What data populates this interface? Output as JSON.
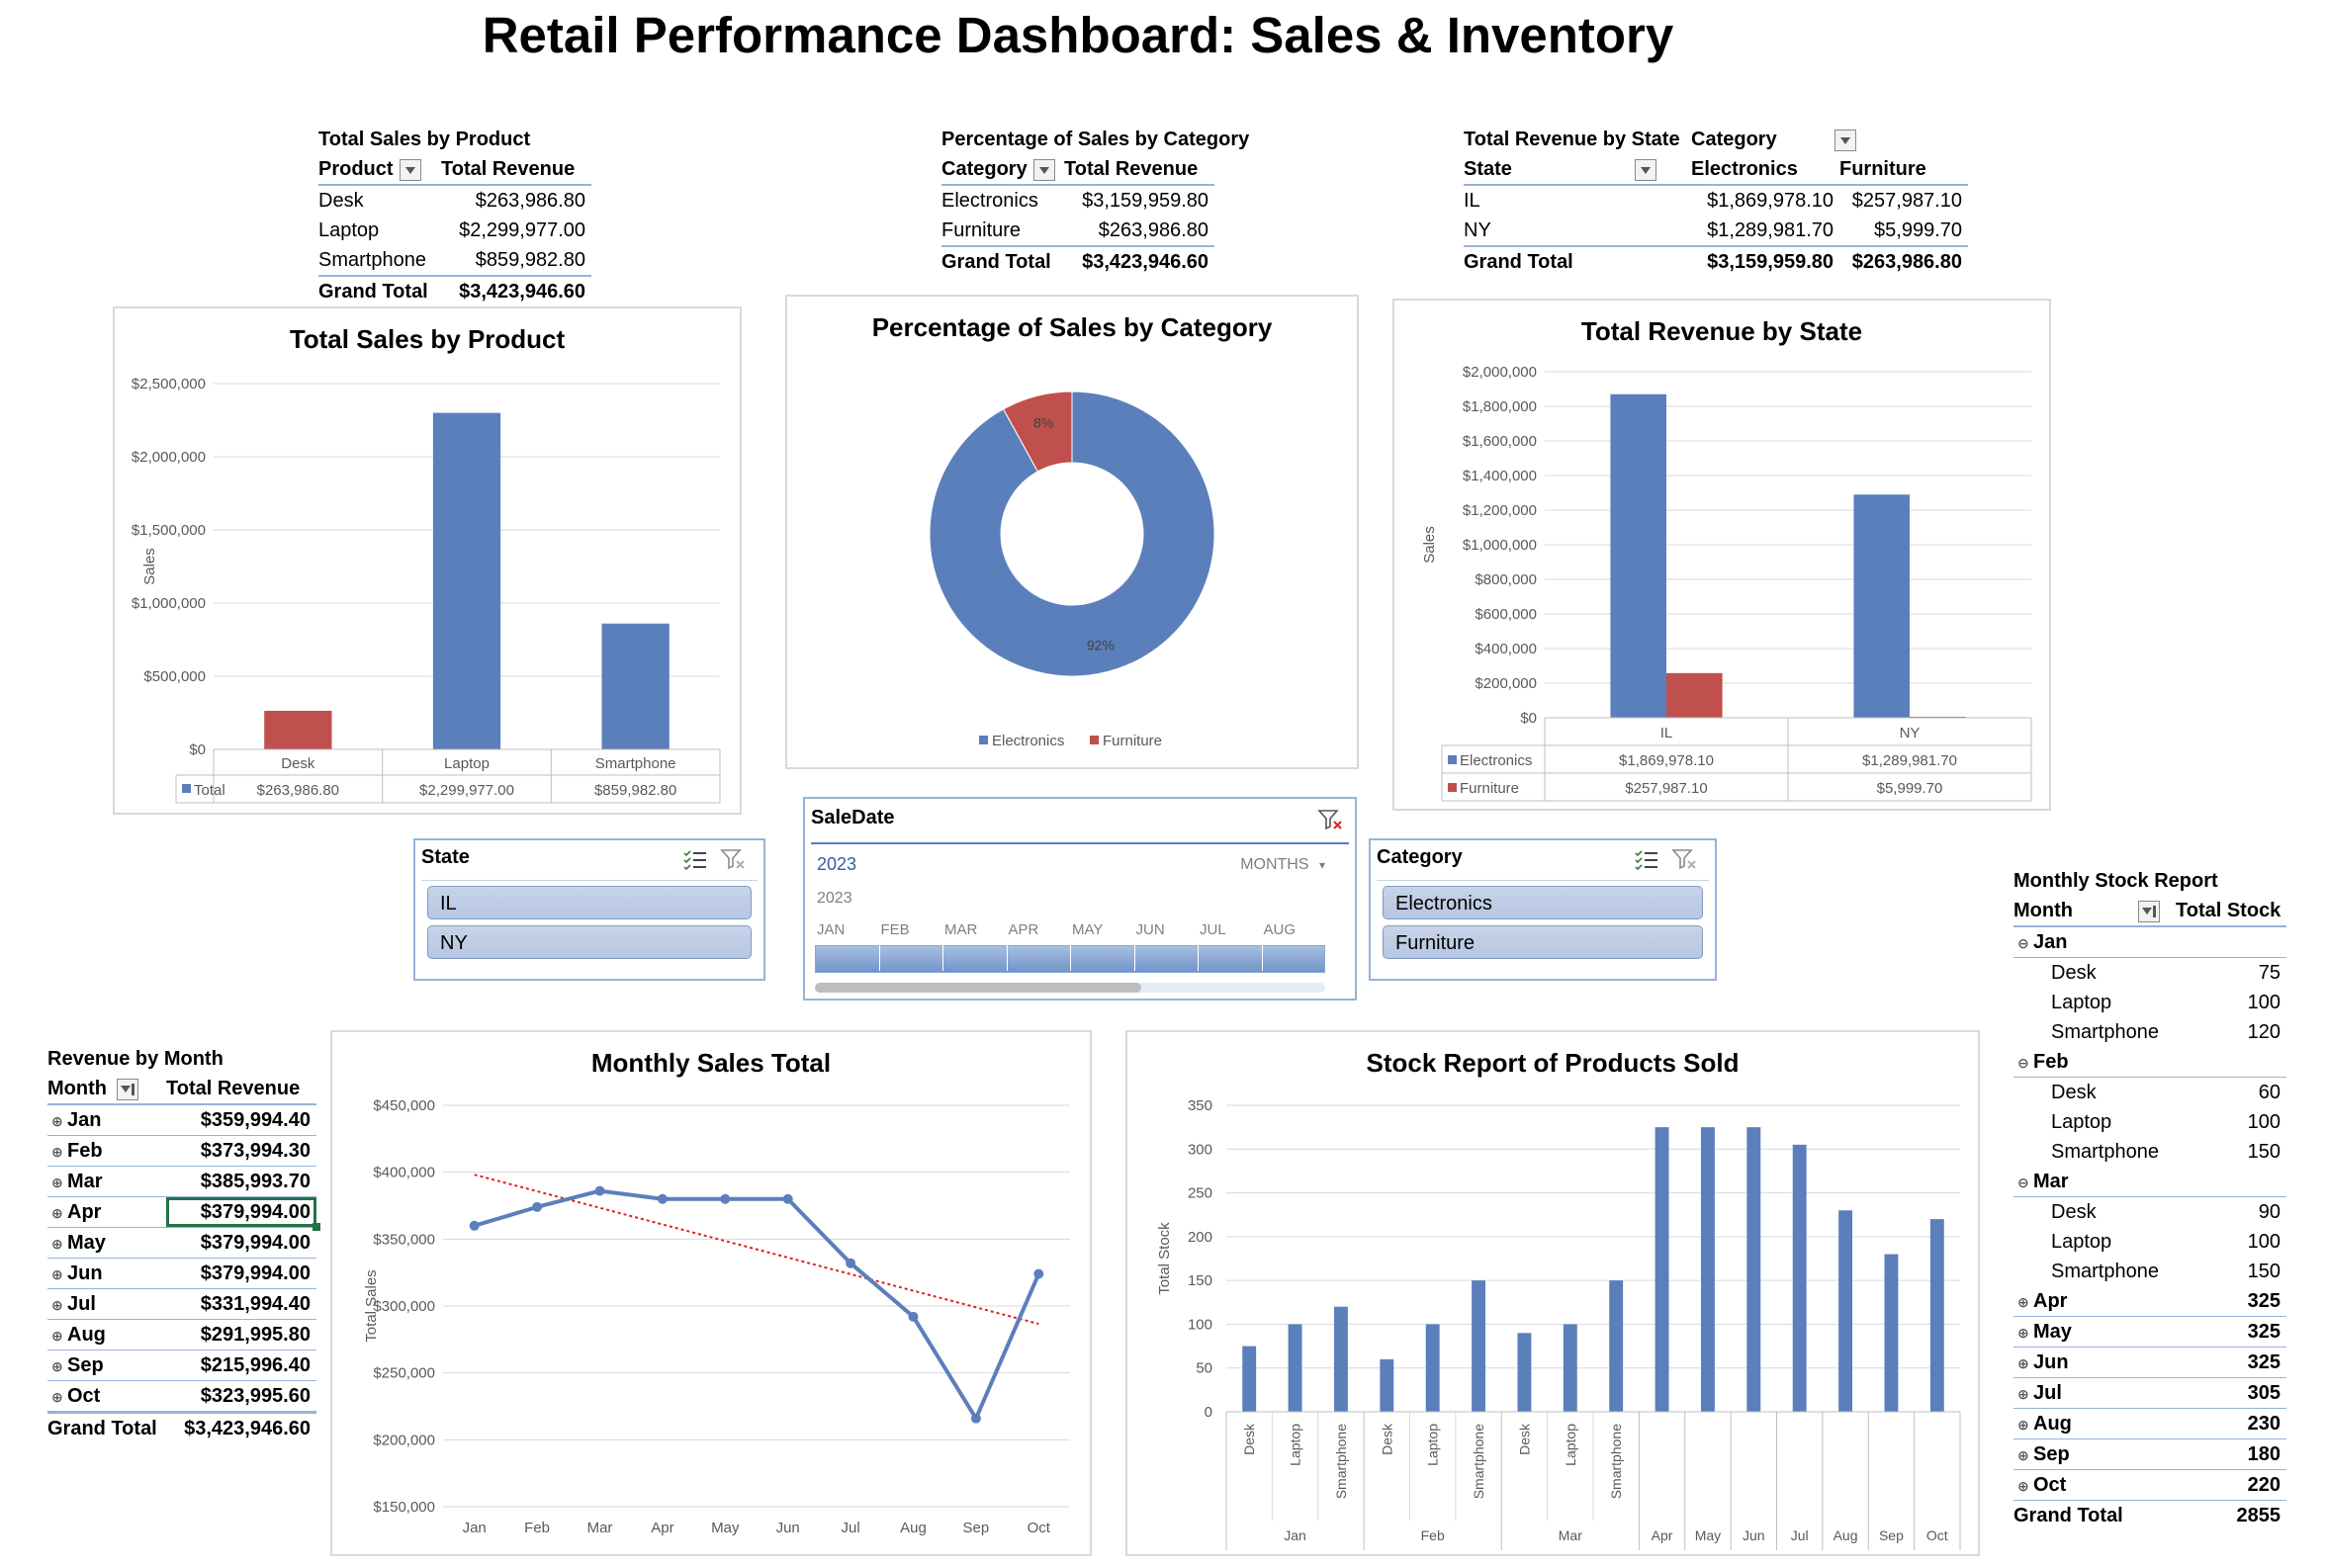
{
  "title": "Retail Performance Dashboard: Sales & Inventory",
  "pivot_product": {
    "caption": "Total Sales by Product",
    "headers": [
      "Product",
      "Total Revenue"
    ],
    "rows": [
      [
        "Desk",
        "$263,986.80"
      ],
      [
        "Laptop",
        "$2,299,977.00"
      ],
      [
        "Smartphone",
        "$859,982.80"
      ]
    ],
    "total": [
      "Grand Total",
      "$3,423,946.60"
    ]
  },
  "pivot_category": {
    "caption": "Percentage of Sales by Category",
    "headers": [
      "Category",
      "Total Revenue"
    ],
    "rows": [
      [
        "Electronics",
        "$3,159,959.80"
      ],
      [
        "Furniture",
        "$263,986.80"
      ]
    ],
    "total": [
      "Grand Total",
      "$3,423,946.60"
    ]
  },
  "pivot_state": {
    "caption": "Total Revenue by State",
    "col_field": "Category",
    "headers": [
      "State",
      "Electronics",
      "Furniture"
    ],
    "rows": [
      [
        "IL",
        "$1,869,978.10",
        "$257,987.10"
      ],
      [
        "NY",
        "$1,289,981.70",
        "$5,999.70"
      ]
    ],
    "total": [
      "Grand Total",
      "$3,159,959.80",
      "$263,986.80"
    ]
  },
  "pivot_month": {
    "caption": "Revenue by Month",
    "headers": [
      "Month",
      "Total Revenue"
    ],
    "rows": [
      [
        "Jan",
        "$359,994.40"
      ],
      [
        "Feb",
        "$373,994.30"
      ],
      [
        "Mar",
        "$385,993.70"
      ],
      [
        "Apr",
        "$379,994.00"
      ],
      [
        "May",
        "$379,994.00"
      ],
      [
        "Jun",
        "$379,994.00"
      ],
      [
        "Jul",
        "$331,994.40"
      ],
      [
        "Aug",
        "$291,995.80"
      ],
      [
        "Sep",
        "$215,996.40"
      ],
      [
        "Oct",
        "$323,995.60"
      ]
    ],
    "total": [
      "Grand Total",
      "$3,423,946.60"
    ]
  },
  "pivot_stock": {
    "caption": "Monthly Stock Report",
    "headers": [
      "Month",
      "Total Stock"
    ],
    "rows": [
      {
        "label": "Jan",
        "value": "",
        "group": true
      },
      {
        "label": "Desk",
        "value": "75"
      },
      {
        "label": "Laptop",
        "value": "100"
      },
      {
        "label": "Smartphone",
        "value": "120"
      },
      {
        "label": "Feb",
        "value": "",
        "group": true
      },
      {
        "label": "Desk",
        "value": "60"
      },
      {
        "label": "Laptop",
        "value": "100"
      },
      {
        "label": "Smartphone",
        "value": "150"
      },
      {
        "label": "Mar",
        "value": "",
        "group": true
      },
      {
        "label": "Desk",
        "value": "90"
      },
      {
        "label": "Laptop",
        "value": "100"
      },
      {
        "label": "Smartphone",
        "value": "150"
      },
      {
        "label": "Apr",
        "value": "325",
        "group": true
      },
      {
        "label": "May",
        "value": "325",
        "group": true
      },
      {
        "label": "Jun",
        "value": "325",
        "group": true
      },
      {
        "label": "Jul",
        "value": "305",
        "group": true
      },
      {
        "label": "Aug",
        "value": "230",
        "group": true
      },
      {
        "label": "Sep",
        "value": "180",
        "group": true
      },
      {
        "label": "Oct",
        "value": "220",
        "group": true
      }
    ],
    "total": [
      "Grand Total",
      "2855"
    ]
  },
  "slicer_state": {
    "title": "State",
    "items": [
      "IL",
      "NY"
    ]
  },
  "slicer_category": {
    "title": "Category",
    "items": [
      "Electronics",
      "Furniture"
    ]
  },
  "timeline": {
    "title": "SaleDate",
    "selected": "2023",
    "level": "MONTHS",
    "year": "2023",
    "months": [
      "JAN",
      "FEB",
      "MAR",
      "APR",
      "MAY",
      "JUN",
      "JUL",
      "AUG"
    ]
  },
  "colors": {
    "blue": "#5b7fbb",
    "red": "#c0504d",
    "grid": "#d9d9d9",
    "trend": "#e02020"
  },
  "chart_data": [
    {
      "id": "product",
      "type": "bar",
      "title": "Total Sales by Product",
      "ylabel": "Sales",
      "ylim": [
        0,
        2500000
      ],
      "yticks": [
        "$0",
        "$500,000",
        "$1,000,000",
        "$1,500,000",
        "$2,000,000",
        "$2,500,000"
      ],
      "categories": [
        "Desk",
        "Laptop",
        "Smartphone"
      ],
      "series": [
        {
          "name": "Total",
          "values": [
            263986.8,
            2299977.0,
            859982.8
          ]
        }
      ],
      "table_values": [
        "$263,986.80",
        "$2,299,977.00",
        "$859,982.80"
      ],
      "highlight_index": 0
    },
    {
      "id": "category",
      "type": "pie",
      "title": "Percentage of Sales by Category",
      "categories": [
        "Electronics",
        "Furniture"
      ],
      "values": [
        92,
        8
      ],
      "labels": [
        "92%",
        "8%"
      ],
      "legend": "bottom"
    },
    {
      "id": "state",
      "type": "bar",
      "title": "Total Revenue by State",
      "ylabel": "Sales",
      "ylim": [
        0,
        2000000
      ],
      "yticks": [
        "$0",
        "$200,000",
        "$400,000",
        "$600,000",
        "$800,000",
        "$1,000,000",
        "$1,200,000",
        "$1,400,000",
        "$1,600,000",
        "$1,800,000",
        "$2,000,000"
      ],
      "categories": [
        "IL",
        "NY"
      ],
      "series": [
        {
          "name": "Electronics",
          "values": [
            1869978.1,
            1289981.7
          ],
          "table": [
            "$1,869,978.10",
            "$1,289,981.70"
          ]
        },
        {
          "name": "Furniture",
          "values": [
            257987.1,
            5999.7
          ],
          "table": [
            "$257,987.10",
            "$5,999.70"
          ]
        }
      ]
    },
    {
      "id": "monthly",
      "type": "line",
      "title": "Monthly Sales Total",
      "ylabel": "Total Sales",
      "ylim": [
        150000,
        450000
      ],
      "yticks": [
        "$150,000",
        "$200,000",
        "$250,000",
        "$300,000",
        "$350,000",
        "$400,000",
        "$450,000"
      ],
      "categories": [
        "Jan",
        "Feb",
        "Mar",
        "Apr",
        "May",
        "Jun",
        "Jul",
        "Aug",
        "Sep",
        "Oct"
      ],
      "values": [
        359994.4,
        373994.3,
        385993.7,
        379994.0,
        379994.0,
        379994.0,
        331994.4,
        291995.8,
        215996.4,
        323995.6
      ],
      "trendline": "linear"
    },
    {
      "id": "stock",
      "type": "bar",
      "title": "Stock Report of Products Sold",
      "ylabel": "Total Stock",
      "ylim": [
        0,
        350
      ],
      "yticks": [
        "0",
        "50",
        "100",
        "150",
        "200",
        "250",
        "300",
        "350"
      ],
      "bars": [
        {
          "label": "Desk",
          "group": "Jan",
          "value": 75
        },
        {
          "label": "Laptop",
          "group": "Jan",
          "value": 100
        },
        {
          "label": "Smartphone",
          "group": "Jan",
          "value": 120
        },
        {
          "label": "Desk",
          "group": "Feb",
          "value": 60
        },
        {
          "label": "Laptop",
          "group": "Feb",
          "value": 100
        },
        {
          "label": "Smartphone",
          "group": "Feb",
          "value": 150
        },
        {
          "label": "Desk",
          "group": "Mar",
          "value": 90
        },
        {
          "label": "Laptop",
          "group": "Mar",
          "value": 100
        },
        {
          "label": "Smartphone",
          "group": "Mar",
          "value": 150
        },
        {
          "label": "",
          "group": "Apr",
          "value": 325
        },
        {
          "label": "",
          "group": "May",
          "value": 325
        },
        {
          "label": "",
          "group": "Jun",
          "value": 325
        },
        {
          "label": "",
          "group": "Jul",
          "value": 305
        },
        {
          "label": "",
          "group": "Aug",
          "value": 230
        },
        {
          "label": "",
          "group": "Sep",
          "value": 180
        },
        {
          "label": "",
          "group": "Oct",
          "value": 220
        }
      ]
    }
  ]
}
